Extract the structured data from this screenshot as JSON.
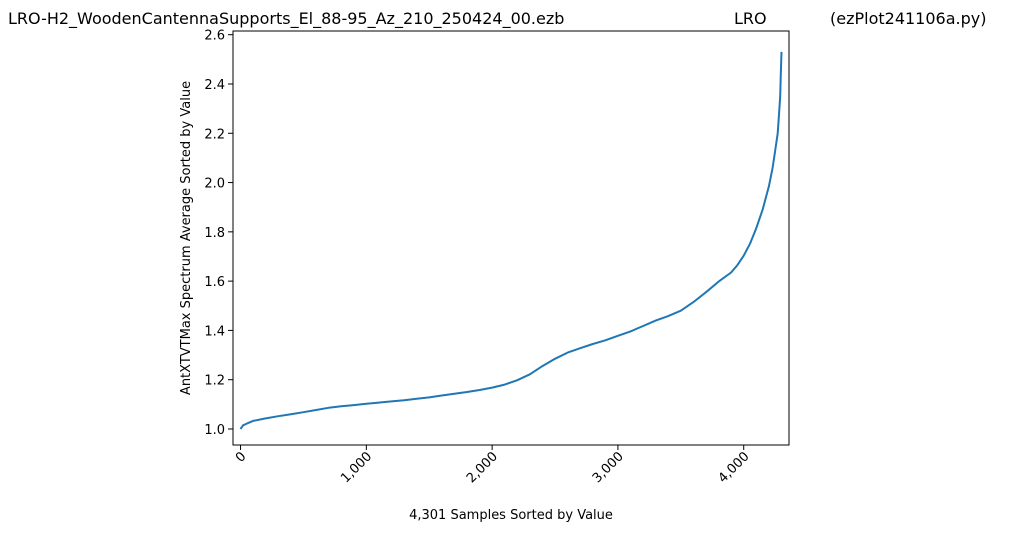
{
  "header": {
    "file_title": "LRO-H2_WoodenCantennaSupports_El_88-95_Az_210_250424_00.ezb",
    "station": "LRO",
    "program": "(ezPlot241106a.py)"
  },
  "chart_data": {
    "type": "line",
    "title": "",
    "xlabel": "4,301 Samples Sorted by Value",
    "ylabel": "AntXTVTMax Spectrum Average Sorted by Value",
    "xlim": [
      -60,
      4360
    ],
    "ylim": [
      0.935,
      2.615
    ],
    "x_ticks": [
      0,
      1000,
      2000,
      3000,
      4000
    ],
    "x_tick_labels": [
      "0",
      "1,000",
      "2,000",
      "3,000",
      "4,000"
    ],
    "y_ticks": [
      1.0,
      1.2,
      1.4,
      1.6,
      1.8,
      2.0,
      2.2,
      2.4,
      2.6
    ],
    "y_tick_labels": [
      "1.0",
      "1.2",
      "1.4",
      "1.6",
      "1.8",
      "2.0",
      "2.2",
      "2.4",
      "2.6"
    ],
    "grid": false,
    "color": "#1f77b4",
    "series": [
      {
        "x": [
          0,
          20,
          50,
          100,
          200,
          300,
          400,
          500,
          600,
          700,
          800,
          900,
          1000,
          1100,
          1200,
          1300,
          1400,
          1500,
          1600,
          1700,
          1800,
          1900,
          2000,
          2100,
          2200,
          2300,
          2400,
          2500,
          2600,
          2700,
          2800,
          2900,
          3000,
          3100,
          3200,
          3300,
          3400,
          3500,
          3600,
          3700,
          3800,
          3900,
          3950,
          4000,
          4050,
          4100,
          4150,
          4200,
          4230,
          4250,
          4270,
          4280,
          4290,
          4295,
          4300
        ],
        "values": [
          1.0,
          1.015,
          1.022,
          1.033,
          1.043,
          1.052,
          1.06,
          1.068,
          1.077,
          1.086,
          1.092,
          1.097,
          1.102,
          1.107,
          1.112,
          1.117,
          1.123,
          1.128,
          1.136,
          1.143,
          1.15,
          1.158,
          1.168,
          1.18,
          1.198,
          1.222,
          1.255,
          1.285,
          1.31,
          1.328,
          1.345,
          1.36,
          1.378,
          1.396,
          1.418,
          1.44,
          1.458,
          1.48,
          1.515,
          1.555,
          1.598,
          1.635,
          1.665,
          1.703,
          1.752,
          1.815,
          1.89,
          1.985,
          2.06,
          2.13,
          2.2,
          2.27,
          2.35,
          2.44,
          2.53
        ]
      }
    ]
  }
}
